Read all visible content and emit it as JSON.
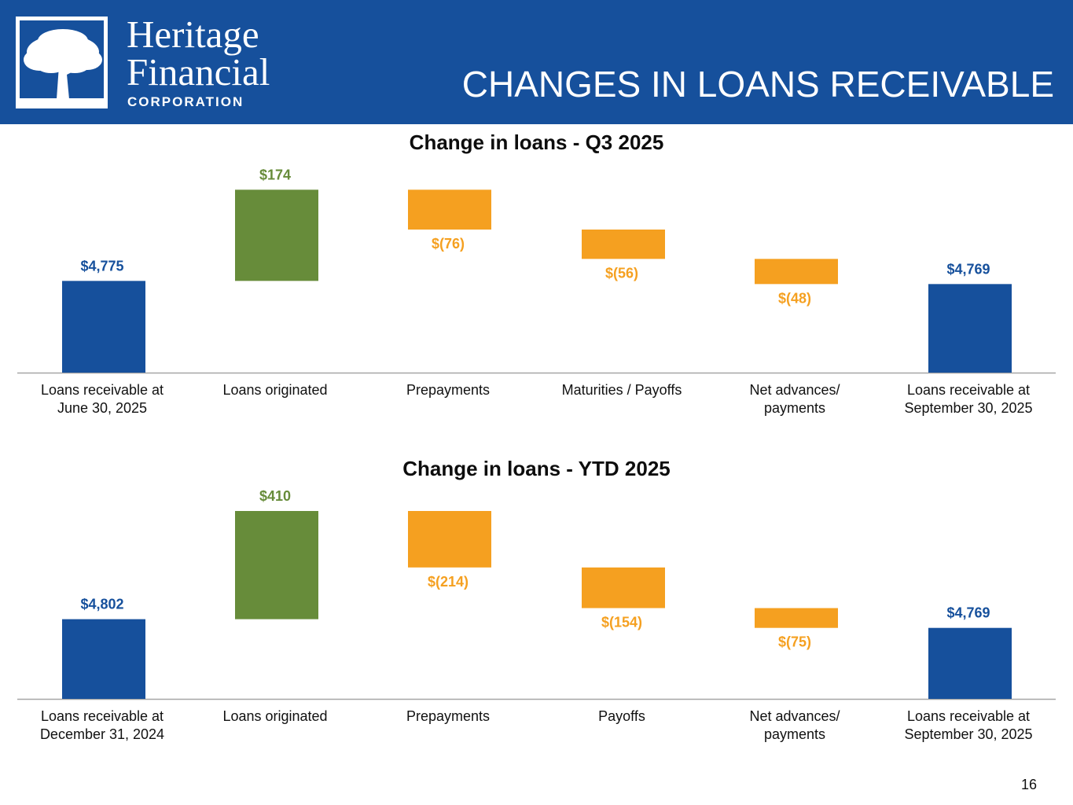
{
  "header": {
    "brand_line1": "Heritage",
    "brand_line2": "Financial",
    "brand_sub": "CORPORATION",
    "title": "CHANGES IN LOANS RECEIVABLE",
    "logo_icon": "oak-tree-icon"
  },
  "colors": {
    "header_bg": "#16509c",
    "total": "#16509c",
    "increase": "#678c3a",
    "decrease": "#f5a020",
    "axis": "#a6a6a6"
  },
  "page_number": "16",
  "chart_data": [
    {
      "id": "q3",
      "type": "bar",
      "subtype": "waterfall",
      "title": "Change in loans - Q3 2025",
      "categories": [
        [
          "Loans receivable at",
          "June 30, 2025"
        ],
        [
          "Loans originated"
        ],
        [
          "Prepayments"
        ],
        [
          "Maturities / Payoffs"
        ],
        [
          "Net advances/",
          "payments"
        ],
        [
          "Loans receivable at",
          "September 30, 2025"
        ]
      ],
      "values": [
        4775,
        174,
        -76,
        -56,
        -48,
        4769
      ],
      "kinds": [
        "total",
        "increase",
        "decrease",
        "decrease",
        "decrease",
        "total"
      ],
      "data_labels": [
        "$4,775",
        "$174",
        "$(76)",
        "$(56)",
        "$(48)",
        "$4,769"
      ],
      "ylim": [
        4600,
        4960
      ],
      "xlabel": "",
      "ylabel": "",
      "grid": false,
      "legend": false
    },
    {
      "id": "ytd",
      "type": "bar",
      "subtype": "waterfall",
      "title": "Change in loans -  YTD 2025",
      "categories": [
        [
          "Loans receivable at",
          "December 31, 2024"
        ],
        [
          "Loans originated"
        ],
        [
          "Prepayments"
        ],
        [
          "Payoffs"
        ],
        [
          "Net advances/",
          "payments"
        ],
        [
          "Loans receivable at",
          "September 30, 2025"
        ]
      ],
      "values": [
        4802,
        410,
        -214,
        -154,
        -75,
        4769
      ],
      "kinds": [
        "total",
        "increase",
        "decrease",
        "decrease",
        "decrease",
        "total"
      ],
      "data_labels": [
        "$4,802",
        "$410",
        "$(214)",
        "$(154)",
        "$(75)",
        "$4,769"
      ],
      "ylim": [
        4500,
        5212
      ],
      "xlabel": "",
      "ylabel": "",
      "grid": false,
      "legend": false
    }
  ]
}
